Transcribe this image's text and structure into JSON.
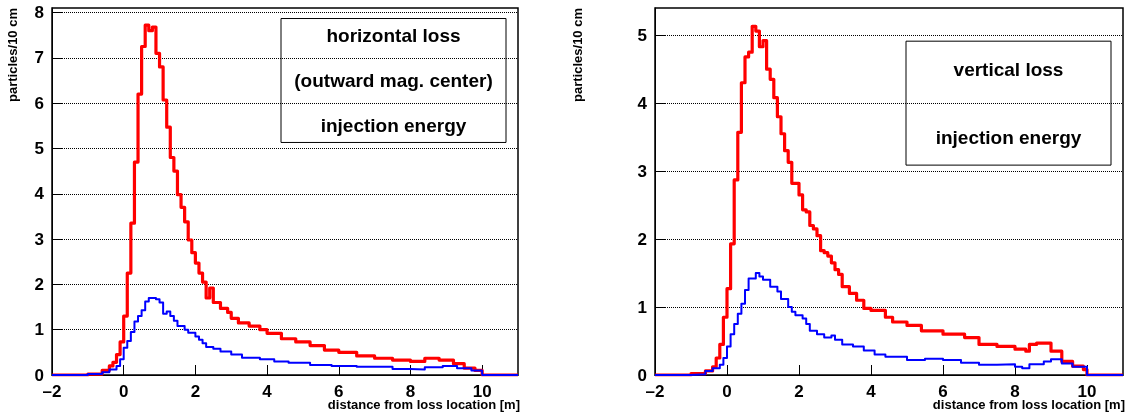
{
  "chart_data": [
    {
      "type": "step",
      "xlabel": "distance from loss location [m]",
      "ylabel": "particles/10 cm",
      "annotations": [
        "horizontal loss",
        "(outward mag. center)",
        "injection energy"
      ],
      "xlim": [
        -2,
        11
      ],
      "xticks": [
        {
          "value": -2,
          "label": "–2"
        },
        0,
        2,
        4,
        6,
        8,
        10
      ],
      "ylim": [
        0,
        8.1
      ],
      "yticks": [
        0,
        1,
        2,
        3,
        4,
        5,
        6,
        7,
        8
      ],
      "grid": "y",
      "marker": "none",
      "line_style": "solid",
      "series": [
        {
          "color": "#ff0000",
          "x": [
            -2,
            -1,
            -0.6,
            -0.4,
            -0.3,
            -0.2,
            -0.1,
            0,
            0.1,
            0.2,
            0.3,
            0.4,
            0.5,
            0.6,
            0.7,
            0.8,
            0.9,
            1.0,
            1.1,
            1.2,
            1.3,
            1.4,
            1.5,
            1.6,
            1.7,
            1.8,
            1.9,
            2.0,
            2.1,
            2.2,
            2.3,
            2.4,
            2.5,
            2.7,
            2.9,
            3.0,
            3.2,
            3.5,
            3.8,
            4.0,
            4.4,
            4.8,
            5.2,
            5.6,
            6.0,
            6.5,
            7.0,
            7.5,
            8.0,
            8.4,
            8.8,
            9.2,
            9.5,
            9.8,
            10.0,
            11
          ],
          "values": [
            0,
            0.02,
            0.1,
            0.2,
            0.28,
            0.45,
            0.73,
            1.3,
            2.25,
            3.35,
            4.7,
            6.2,
            7.25,
            7.72,
            7.6,
            7.68,
            7.1,
            6.8,
            6.07,
            5.47,
            4.8,
            4.5,
            3.98,
            3.7,
            3.38,
            2.98,
            2.7,
            2.47,
            2.25,
            2.05,
            1.7,
            1.92,
            1.6,
            1.47,
            1.38,
            1.25,
            1.15,
            1.08,
            1.0,
            0.92,
            0.8,
            0.73,
            0.65,
            0.55,
            0.5,
            0.42,
            0.37,
            0.33,
            0.3,
            0.37,
            0.33,
            0.25,
            0.15,
            0.1,
            0,
            0
          ]
        },
        {
          "color": "#0000ff",
          "x": [
            -2,
            -1,
            -0.6,
            -0.4,
            -0.2,
            -0.1,
            0,
            0.1,
            0.2,
            0.3,
            0.4,
            0.5,
            0.6,
            0.7,
            0.9,
            1.0,
            1.1,
            1.2,
            1.3,
            1.4,
            1.5,
            1.7,
            1.8,
            2.0,
            2.1,
            2.2,
            2.3,
            2.5,
            2.7,
            3.0,
            3.3,
            3.8,
            4.2,
            4.6,
            5.2,
            5.8,
            6.5,
            7.5,
            8.0,
            8.4,
            8.9,
            9.3,
            9.7,
            10.0,
            11
          ],
          "values": [
            0,
            0.02,
            0.06,
            0.12,
            0.2,
            0.35,
            0.6,
            0.75,
            0.95,
            1.18,
            1.3,
            1.43,
            1.62,
            1.7,
            1.67,
            1.6,
            1.35,
            1.4,
            1.3,
            1.2,
            1.08,
            1.0,
            0.93,
            0.85,
            0.78,
            0.7,
            0.62,
            0.58,
            0.52,
            0.45,
            0.38,
            0.35,
            0.3,
            0.27,
            0.22,
            0.2,
            0.18,
            0.13,
            0.12,
            0.17,
            0.2,
            0.15,
            0.1,
            0,
            0
          ]
        }
      ]
    },
    {
      "type": "step",
      "xlabel": "distance from loss location [m]",
      "ylabel": "particles/10 cm",
      "annotations": [
        "vertical loss",
        "injection energy"
      ],
      "xlim": [
        -2,
        11
      ],
      "xticks": [
        {
          "value": -2,
          "label": "–2"
        },
        0,
        2,
        4,
        6,
        8,
        10
      ],
      "ylim": [
        0,
        5.4
      ],
      "yticks": [
        0,
        1,
        2,
        3,
        4,
        5
      ],
      "grid": "y",
      "marker": "none",
      "line_style": "solid",
      "series": [
        {
          "color": "#ff0000",
          "x": [
            -2,
            -1,
            -0.6,
            -0.4,
            -0.3,
            -0.2,
            -0.1,
            0,
            0.1,
            0.2,
            0.3,
            0.4,
            0.5,
            0.6,
            0.7,
            0.8,
            0.9,
            1.0,
            1.1,
            1.2,
            1.3,
            1.4,
            1.5,
            1.6,
            1.7,
            1.8,
            2.0,
            2.1,
            2.2,
            2.3,
            2.4,
            2.5,
            2.6,
            2.7,
            2.8,
            2.9,
            3.0,
            3.1,
            3.2,
            3.4,
            3.6,
            3.8,
            4.0,
            4.4,
            4.6,
            5.0,
            5.4,
            6.0,
            6.6,
            7.0,
            7.5,
            8.0,
            8.3,
            8.4,
            8.6,
            9.0,
            9.3,
            9.6,
            9.9,
            10.0,
            11
          ],
          "values": [
            0,
            0.02,
            0.06,
            0.12,
            0.25,
            0.45,
            0.85,
            1.27,
            1.93,
            2.87,
            3.57,
            4.3,
            4.68,
            4.75,
            5.13,
            5.06,
            4.83,
            4.92,
            4.5,
            4.35,
            4.08,
            3.8,
            3.55,
            3.3,
            3.13,
            2.82,
            2.65,
            2.43,
            2.4,
            2.2,
            2.15,
            2.05,
            1.83,
            1.8,
            1.75,
            1.65,
            1.55,
            1.48,
            1.3,
            1.2,
            1.1,
            0.98,
            0.95,
            0.85,
            0.78,
            0.73,
            0.65,
            0.6,
            0.55,
            0.45,
            0.42,
            0.38,
            0.35,
            0.45,
            0.47,
            0.35,
            0.2,
            0.13,
            0.08,
            0,
            0
          ]
        },
        {
          "color": "#0000ff",
          "x": [
            -2,
            -1,
            -0.6,
            -0.4,
            -0.2,
            -0.1,
            0,
            0.1,
            0.2,
            0.3,
            0.4,
            0.5,
            0.6,
            0.8,
            0.9,
            1.0,
            1.2,
            1.4,
            1.5,
            1.7,
            1.8,
            1.9,
            2.1,
            2.2,
            2.3,
            2.5,
            2.7,
            2.9,
            3.0,
            3.2,
            3.5,
            3.8,
            4.1,
            4.4,
            5.0,
            5.5,
            6.0,
            6.5,
            7.0,
            7.5,
            8.0,
            8.2,
            8.4,
            8.8,
            9.0,
            9.3,
            9.6,
            10.0,
            11
          ],
          "values": [
            0,
            0.01,
            0.06,
            0.1,
            0.15,
            0.25,
            0.42,
            0.6,
            0.75,
            0.9,
            1.05,
            1.25,
            1.42,
            1.5,
            1.45,
            1.4,
            1.3,
            1.23,
            1.12,
            1.0,
            0.93,
            0.88,
            0.83,
            0.75,
            0.65,
            0.6,
            0.55,
            0.58,
            0.52,
            0.45,
            0.42,
            0.36,
            0.3,
            0.27,
            0.22,
            0.24,
            0.22,
            0.18,
            0.15,
            0.16,
            0.12,
            0.1,
            0.16,
            0.2,
            0.23,
            0.17,
            0.12,
            0,
            0
          ]
        }
      ]
    }
  ]
}
